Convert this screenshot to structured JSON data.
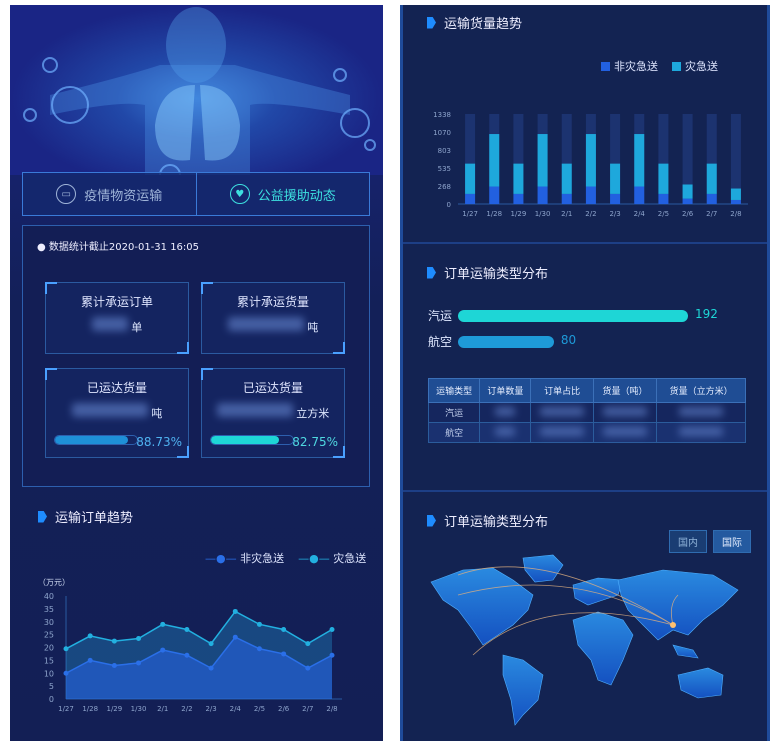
{
  "left": {
    "tabs": [
      {
        "label": "疫情物资运输",
        "icon": "truck-icon"
      },
      {
        "label": "公益援助动态",
        "icon": "heart-icon"
      }
    ],
    "stamp": "数据统计截止2020-01-31 16:05",
    "cards": [
      {
        "title": "累计承运订单",
        "unit": "单"
      },
      {
        "title": "累计承运货量",
        "unit": "吨"
      },
      {
        "title": "已运达货量",
        "unit": "吨",
        "percent": "88.73%",
        "progress": 88.73,
        "color": "#1e90d8"
      },
      {
        "title": "已运达货量",
        "unit": "立方米",
        "percent": "82.75%",
        "progress": 82.75,
        "color": "#1ed6d6"
      }
    ],
    "trend_title": "运输订单趋势"
  },
  "right": {
    "volume_title": "运输货量趋势",
    "type_title": "订单运输类型分布",
    "type_bars": [
      {
        "label": "汽运",
        "value": 192,
        "color": "#1ed6d6"
      },
      {
        "label": "航空",
        "value": 80,
        "color": "#1e9ad8"
      }
    ],
    "table": {
      "headers": [
        "运输类型",
        "订单数量",
        "订单占比",
        "货量（吨）",
        "货量（立方米）"
      ],
      "rows": [
        "汽运",
        "航空"
      ]
    },
    "map_title": "订单运输类型分布",
    "map_buttons": [
      "国内",
      "国际"
    ],
    "map_active": "国际"
  },
  "chart_data": [
    {
      "type": "area",
      "ylabel": "（万元）",
      "ylim": [
        0,
        40
      ],
      "yticks": [
        0,
        5,
        10,
        15,
        20,
        25,
        30,
        35,
        40
      ],
      "categories": [
        "1/27",
        "1/28",
        "1/29",
        "1/30",
        "2/1",
        "2/2",
        "2/3",
        "2/4",
        "2/5",
        "2/6",
        "2/7",
        "2/8"
      ],
      "series": [
        {
          "name": "非灾急送",
          "color": "#2a6fe8",
          "values": [
            10,
            15,
            13,
            14,
            19,
            17,
            12,
            24,
            19.5,
            17.5,
            12,
            17
          ]
        },
        {
          "name": "灾急送",
          "color": "#22b0e0",
          "values": [
            19.5,
            24.5,
            22.5,
            23.5,
            29,
            27,
            21.5,
            34,
            29,
            27,
            21.5,
            27
          ]
        }
      ]
    },
    {
      "type": "bar",
      "stacked": true,
      "ylim": [
        0,
        1338
      ],
      "yticks": [
        0,
        268,
        535,
        803,
        1070,
        1338
      ],
      "categories": [
        "1/27",
        "1/28",
        "1/29",
        "1/30",
        "2/1",
        "2/2",
        "2/3",
        "2/4",
        "2/5",
        "2/6",
        "2/7",
        "2/8"
      ],
      "series": [
        {
          "name": "非灾急送",
          "color": "#2260e0",
          "values": [
            150,
            260,
            150,
            260,
            150,
            260,
            150,
            260,
            150,
            80,
            150,
            60
          ]
        },
        {
          "name": "灾急送",
          "color": "#1ea8dc",
          "values": [
            450,
            780,
            450,
            780,
            450,
            780,
            450,
            780,
            450,
            210,
            450,
            170
          ]
        }
      ]
    }
  ]
}
